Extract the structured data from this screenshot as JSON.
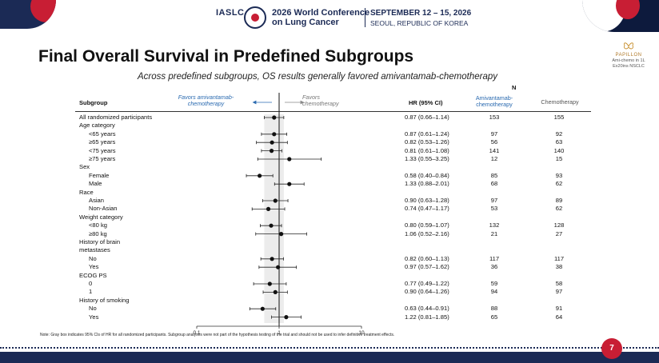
{
  "header": {
    "org": "IASLC",
    "conference_line1": "2026 World Conference",
    "conference_line2": "on Lung Cancer",
    "dates": "SEPTEMBER 12 – 15, 2026",
    "location": "SEOUL, REPUBLIC OF KOREA"
  },
  "slide": {
    "title": "Final Overall Survival in Predefined Subgroups",
    "subtitle": "Across predefined subgroups, OS results generally favored amivantamab-chemotherapy",
    "badge_name": "PAPILLON",
    "badge_line1": "Ami-chemo in 1L",
    "badge_line2": "Ex20ins NSCLC",
    "footnote": "Note: Gray box indicates 95% CIs of HR for all randomized participants. Subgroup analyses were not part of the hypothesis testing of the trial and should not be used to infer definitive treatment effects.",
    "page_number": "7"
  },
  "columns": {
    "subgroup": "Subgroup",
    "favors_left_1": "Favors amivantamab-",
    "favors_left_2": "chemotherapy",
    "favors_right_1": "Favors",
    "favors_right_2": "chemotherapy",
    "hr": "HR (95% CI)",
    "n_header": "N",
    "arm1_1": "Amivantamab-",
    "arm1_2": "chemotherapy",
    "arm2": "Chemotherapy"
  },
  "rows": [
    {
      "label": "All randomized participants",
      "indent": false,
      "hr_text": "0.87 (0.66–1.14)",
      "hr": 0.87,
      "lo": 0.66,
      "hi": 1.14,
      "n1": "153",
      "n2": "155"
    },
    {
      "label": "Age category",
      "indent": false,
      "header": true
    },
    {
      "label": "<65 years",
      "indent": true,
      "hr_text": "0.87 (0.61–1.24)",
      "hr": 0.87,
      "lo": 0.61,
      "hi": 1.24,
      "n1": "97",
      "n2": "92"
    },
    {
      "label": "≥65 years",
      "indent": true,
      "hr_text": "0.82 (0.53–1.26)",
      "hr": 0.82,
      "lo": 0.53,
      "hi": 1.26,
      "n1": "56",
      "n2": "63"
    },
    {
      "label": "<75 years",
      "indent": true,
      "hr_text": "0.81 (0.61–1.08)",
      "hr": 0.81,
      "lo": 0.61,
      "hi": 1.08,
      "n1": "141",
      "n2": "140"
    },
    {
      "label": "≥75 years",
      "indent": true,
      "hr_text": "1.33 (0.55–3.25)",
      "hr": 1.33,
      "lo": 0.55,
      "hi": 3.25,
      "n1": "12",
      "n2": "15"
    },
    {
      "label": "Sex",
      "indent": false,
      "header": true
    },
    {
      "label": "Female",
      "indent": true,
      "hr_text": "0.58 (0.40–0.84)",
      "hr": 0.58,
      "lo": 0.4,
      "hi": 0.84,
      "n1": "85",
      "n2": "93"
    },
    {
      "label": "Male",
      "indent": true,
      "hr_text": "1.33 (0.88–2.01)",
      "hr": 1.33,
      "lo": 0.88,
      "hi": 2.01,
      "n1": "68",
      "n2": "62"
    },
    {
      "label": "Race",
      "indent": false,
      "header": true
    },
    {
      "label": "Asian",
      "indent": true,
      "hr_text": "0.90 (0.63–1.28)",
      "hr": 0.9,
      "lo": 0.63,
      "hi": 1.28,
      "n1": "97",
      "n2": "89"
    },
    {
      "label": "Non-Asian",
      "indent": true,
      "hr_text": "0.74 (0.47–1.17)",
      "hr": 0.74,
      "lo": 0.47,
      "hi": 1.17,
      "n1": "53",
      "n2": "62"
    },
    {
      "label": "Weight category",
      "indent": false,
      "header": true
    },
    {
      "label": "<80 kg",
      "indent": true,
      "hr_text": "0.80 (0.59–1.07)",
      "hr": 0.8,
      "lo": 0.59,
      "hi": 1.07,
      "n1": "132",
      "n2": "128"
    },
    {
      "label": "≥80 kg",
      "indent": true,
      "hr_text": "1.06 (0.52–2.16)",
      "hr": 1.06,
      "lo": 0.52,
      "hi": 2.16,
      "n1": "21",
      "n2": "27"
    },
    {
      "label": "History of brain",
      "indent": false,
      "header": true
    },
    {
      "label": "metastases",
      "indent": false,
      "header": true
    },
    {
      "label": "No",
      "indent": true,
      "hr_text": "0.82 (0.60–1.13)",
      "hr": 0.82,
      "lo": 0.6,
      "hi": 1.13,
      "n1": "117",
      "n2": "117"
    },
    {
      "label": "Yes",
      "indent": true,
      "hr_text": "0.97 (0.57–1.62)",
      "hr": 0.97,
      "lo": 0.57,
      "hi": 1.62,
      "n1": "36",
      "n2": "38"
    },
    {
      "label": "ECOG PS",
      "indent": false,
      "header": true
    },
    {
      "label": "0",
      "indent": true,
      "hr_text": "0.77 (0.49–1.22)",
      "hr": 0.77,
      "lo": 0.49,
      "hi": 1.22,
      "n1": "59",
      "n2": "58"
    },
    {
      "label": "1",
      "indent": true,
      "hr_text": "0.90 (0.64–1.26)",
      "hr": 0.9,
      "lo": 0.64,
      "hi": 1.26,
      "n1": "94",
      "n2": "97"
    },
    {
      "label": "History of smoking",
      "indent": false,
      "header": true
    },
    {
      "label": "No",
      "indent": true,
      "hr_text": "0.63 (0.44–0.91)",
      "hr": 0.63,
      "lo": 0.44,
      "hi": 0.91,
      "n1": "88",
      "n2": "91"
    },
    {
      "label": "Yes",
      "indent": true,
      "hr_text": "1.22 (0.81–1.85)",
      "hr": 1.22,
      "lo": 0.81,
      "hi": 1.85,
      "n1": "65",
      "n2": "64"
    }
  ],
  "chart_data": {
    "type": "scatter",
    "scale": "log",
    "xlim": [
      0.1,
      10
    ],
    "x_ticks": [
      "0.1",
      "1",
      "10"
    ],
    "reference_line": 1,
    "gray_box": [
      0.66,
      1.14
    ],
    "points": [
      {
        "hr": 0.87,
        "lo": 0.66,
        "hi": 1.14
      },
      {
        "hr": 0.87,
        "lo": 0.61,
        "hi": 1.24
      },
      {
        "hr": 0.82,
        "lo": 0.53,
        "hi": 1.26
      },
      {
        "hr": 0.81,
        "lo": 0.61,
        "hi": 1.08
      },
      {
        "hr": 1.33,
        "lo": 0.55,
        "hi": 3.25
      },
      {
        "hr": 0.58,
        "lo": 0.4,
        "hi": 0.84
      },
      {
        "hr": 1.33,
        "lo": 0.88,
        "hi": 2.01
      },
      {
        "hr": 0.9,
        "lo": 0.63,
        "hi": 1.28
      },
      {
        "hr": 0.74,
        "lo": 0.47,
        "hi": 1.17
      },
      {
        "hr": 0.8,
        "lo": 0.59,
        "hi": 1.07
      },
      {
        "hr": 1.06,
        "lo": 0.52,
        "hi": 2.16
      },
      {
        "hr": 0.82,
        "lo": 0.6,
        "hi": 1.13
      },
      {
        "hr": 0.97,
        "lo": 0.57,
        "hi": 1.62
      },
      {
        "hr": 0.77,
        "lo": 0.49,
        "hi": 1.22
      },
      {
        "hr": 0.9,
        "lo": 0.64,
        "hi": 1.26
      },
      {
        "hr": 0.63,
        "lo": 0.44,
        "hi": 0.91
      },
      {
        "hr": 1.22,
        "lo": 0.81,
        "hi": 1.85
      }
    ]
  },
  "colors": {
    "navy": "#1b2a55",
    "red": "#c81e34",
    "favor_blue": "#2a6ab0",
    "gray_box": "#e4e4e4"
  }
}
